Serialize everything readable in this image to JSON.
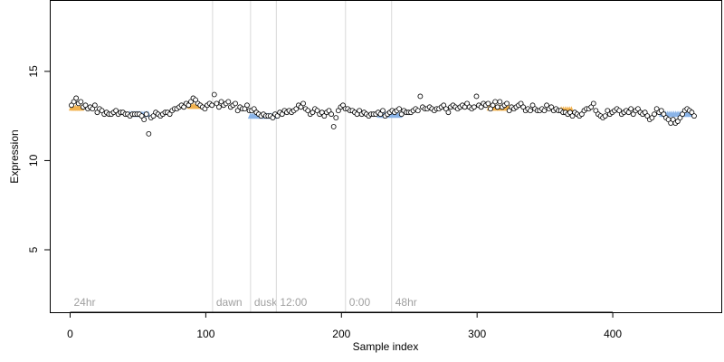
{
  "chart_data": {
    "type": "scatter",
    "xlabel": "Sample index",
    "ylabel": "Expression",
    "xlim": [
      -15,
      480
    ],
    "ylim": [
      1.5,
      19
    ],
    "xticks": [
      0,
      100,
      200,
      300,
      400
    ],
    "yticks": [
      5,
      10,
      15
    ],
    "grid": false,
    "colors": {
      "point_fill": "#ffffff",
      "point_stroke": "#000000",
      "gold": "#f2b24e",
      "blue": "#8ab4e8",
      "annotation_line": "#d8d8d8",
      "annotation_text": "#a0a0a0"
    },
    "annotations": [
      {
        "label": "24hr",
        "x": 0
      },
      {
        "label": "dawn",
        "x": 105
      },
      {
        "label": "dusk",
        "x": 133
      },
      {
        "label": "12:00",
        "x": 152
      },
      {
        "label": "0:00",
        "x": 203
      },
      {
        "label": "48hr",
        "x": 237
      }
    ],
    "highlight_bands": [
      {
        "color": "gold",
        "x": [
          1,
          9
        ],
        "y": 12.95
      },
      {
        "color": "blue",
        "x": [
          44,
          58
        ],
        "y": 12.6
      },
      {
        "color": "gold",
        "x": [
          88,
          97
        ],
        "y": 13.05
      },
      {
        "color": "blue",
        "x": [
          133,
          152
        ],
        "y": 12.5
      },
      {
        "color": "blue",
        "x": [
          228,
          244
        ],
        "y": 12.55
      },
      {
        "color": "gold",
        "x": [
          309,
          326
        ],
        "y": 12.95
      },
      {
        "color": "gold",
        "x": [
          362,
          370
        ],
        "y": 12.85
      },
      {
        "color": "blue",
        "x": [
          436,
          458
        ],
        "y": 12.6
      }
    ],
    "series": [
      {
        "y": [
          13.1,
          13.3,
          13.5,
          13.2,
          13.3,
          13.0,
          13.1,
          12.9,
          13.0,
          12.9,
          13.1,
          12.7,
          12.9,
          12.8,
          12.6,
          12.7,
          12.6,
          12.6,
          12.7,
          12.8,
          12.6,
          12.7,
          12.7,
          12.6,
          12.6,
          12.5,
          12.6,
          12.6,
          12.6,
          12.6,
          12.5,
          12.3,
          12.6,
          11.5,
          12.4,
          12.5,
          12.7,
          12.6,
          12.5,
          12.6,
          12.7,
          12.7,
          12.6,
          12.8,
          12.9,
          12.9,
          13.0,
          13.1,
          13.0,
          13.2,
          13.1,
          13.3,
          13.5,
          13.4,
          13.2,
          13.1,
          13.0,
          12.9,
          13.1,
          13.2,
          13.1,
          13.7,
          13.2,
          13.0,
          13.3,
          13.1,
          13.2,
          13.3,
          13.0,
          13.1,
          13.2,
          12.8,
          13.0,
          12.9,
          12.9,
          13.1,
          12.8,
          12.8,
          12.9,
          12.7,
          12.6,
          12.5,
          12.6,
          12.5,
          12.5,
          12.5,
          12.4,
          12.6,
          12.5,
          12.7,
          12.6,
          12.8,
          12.7,
          12.8,
          12.7,
          12.8,
          12.9,
          13.1,
          13.0,
          13.2,
          12.9,
          12.8,
          12.6,
          12.7,
          12.9,
          12.8,
          12.6,
          12.7,
          12.5,
          12.7,
          12.8,
          12.6,
          11.9,
          12.4,
          12.8,
          13.0,
          13.1,
          12.9,
          12.9,
          12.8,
          12.8,
          12.7,
          12.6,
          12.8,
          12.6,
          12.7,
          12.6,
          12.5,
          12.6,
          12.6,
          12.6,
          12.7,
          12.6,
          12.8,
          12.5,
          12.6,
          12.7,
          12.8,
          12.7,
          12.8,
          12.9,
          12.6,
          12.8,
          12.7,
          12.7,
          12.7,
          12.8,
          12.9,
          12.8,
          13.6,
          13.0,
          12.9,
          12.9,
          13.0,
          12.9,
          12.8,
          12.9,
          12.9,
          13.0,
          13.1,
          12.9,
          12.7,
          13.0,
          13.1,
          13.0,
          12.9,
          13.0,
          13.1,
          13.0,
          13.2,
          13.0,
          12.9,
          13.0,
          13.6,
          13.1,
          13.0,
          13.2,
          13.1,
          13.2,
          12.9,
          13.1,
          13.3,
          13.0,
          13.3,
          13.0,
          13.1,
          13.2,
          12.8,
          13.0,
          12.9,
          13.0,
          13.1,
          13.2,
          13.0,
          12.8,
          12.9,
          12.8,
          13.1,
          12.9,
          12.8,
          12.8,
          12.9,
          12.8,
          13.1,
          12.9,
          13.0,
          12.8,
          12.9,
          12.8,
          12.8,
          12.7,
          12.7,
          12.6,
          12.7,
          12.5,
          12.7,
          12.6,
          12.5,
          12.6,
          12.8,
          12.9,
          12.9,
          13.0,
          13.2,
          12.8,
          12.6,
          12.5,
          12.4,
          12.5,
          12.8,
          12.6,
          12.7,
          12.8,
          12.9,
          12.8,
          12.6,
          12.7,
          12.8,
          12.7,
          12.9,
          12.6,
          12.8,
          12.9,
          12.7,
          12.6,
          12.7,
          12.5,
          12.3,
          12.4,
          12.6,
          12.9,
          12.7,
          12.8,
          12.6,
          12.4,
          12.3,
          12.1,
          12.3,
          12.1,
          12.2,
          12.4,
          12.6,
          12.8,
          12.9,
          12.8,
          12.7,
          12.5
        ]
      }
    ]
  }
}
